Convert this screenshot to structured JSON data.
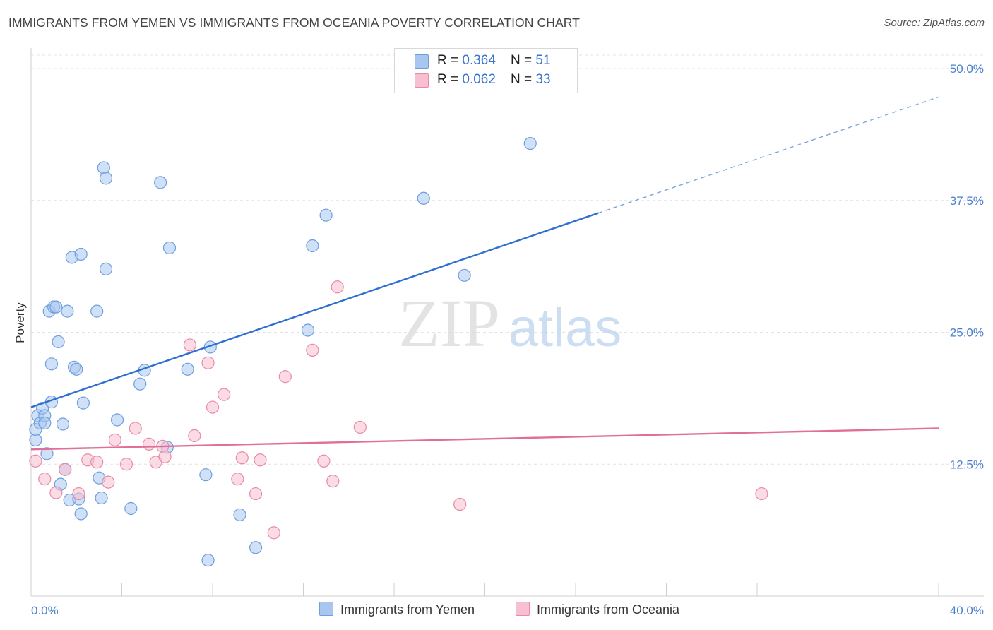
{
  "header": {
    "title": "IMMIGRANTS FROM YEMEN VS IMMIGRANTS FROM OCEANIA POVERTY CORRELATION CHART",
    "source": "Source: ZipAtlas.com"
  },
  "watermark": {
    "zip": "ZIP",
    "atlas": "atlas"
  },
  "legend": {
    "rows": [
      {
        "r_label": "R = ",
        "r_value": "0.364",
        "n_label": "N = ",
        "n_value": "51",
        "color": "#a9c7ee",
        "border": "#6d9fe0"
      },
      {
        "r_label": "R = ",
        "r_value": "0.062",
        "n_label": "N = ",
        "n_value": "33",
        "color": "#f7bfd0",
        "border": "#e98aa8"
      }
    ]
  },
  "chart_data": {
    "type": "scatter",
    "ylabel": "Poverty",
    "xlim": [
      0,
      40
    ],
    "ylim": [
      0,
      50
    ],
    "x_tick_labels": [
      "0.0%",
      "40.0%"
    ],
    "y_ticks": [
      12.5,
      25.0,
      37.5,
      50.0
    ],
    "y_tick_labels": [
      "12.5%",
      "25.0%",
      "37.5%",
      "50.0%"
    ],
    "grid": true,
    "series": [
      {
        "name": "Immigrants from Yemen",
        "color": "#a9c7ee",
        "stroke": "#6d9fe0",
        "trend": {
          "x0": 0,
          "y0": 17.9,
          "x1": 25,
          "y1": 36.3,
          "x2": 40,
          "y2": 47.3,
          "color": "#2f6fcf"
        },
        "points": [
          [
            0.2,
            14.8
          ],
          [
            0.2,
            15.8
          ],
          [
            0.3,
            17.1
          ],
          [
            0.4,
            16.4
          ],
          [
            0.5,
            17.8
          ],
          [
            0.6,
            17.1
          ],
          [
            0.6,
            16.4
          ],
          [
            0.7,
            13.5
          ],
          [
            0.8,
            27.0
          ],
          [
            0.9,
            18.4
          ],
          [
            0.9,
            22.0
          ],
          [
            1.0,
            27.4
          ],
          [
            1.1,
            27.4
          ],
          [
            1.2,
            24.1
          ],
          [
            1.3,
            10.6
          ],
          [
            1.4,
            16.3
          ],
          [
            1.5,
            12.0
          ],
          [
            1.6,
            27.0
          ],
          [
            1.7,
            9.1
          ],
          [
            1.8,
            32.1
          ],
          [
            1.9,
            21.7
          ],
          [
            2.0,
            21.5
          ],
          [
            2.1,
            9.2
          ],
          [
            2.2,
            7.8
          ],
          [
            2.2,
            32.4
          ],
          [
            2.3,
            18.3
          ],
          [
            2.9,
            27.0
          ],
          [
            3.0,
            11.2
          ],
          [
            3.1,
            9.3
          ],
          [
            3.2,
            40.6
          ],
          [
            3.3,
            39.6
          ],
          [
            3.3,
            31.0
          ],
          [
            3.8,
            16.7
          ],
          [
            4.4,
            8.3
          ],
          [
            4.8,
            20.1
          ],
          [
            5.0,
            21.4
          ],
          [
            5.7,
            39.2
          ],
          [
            6.0,
            14.1
          ],
          [
            6.1,
            33.0
          ],
          [
            6.9,
            21.5
          ],
          [
            7.7,
            11.5
          ],
          [
            7.8,
            3.4
          ],
          [
            7.9,
            23.6
          ],
          [
            9.2,
            7.7
          ],
          [
            9.9,
            4.6
          ],
          [
            12.2,
            25.2
          ],
          [
            12.4,
            33.2
          ],
          [
            13.0,
            36.1
          ],
          [
            17.3,
            37.7
          ],
          [
            19.1,
            30.4
          ],
          [
            22.0,
            42.9
          ]
        ]
      },
      {
        "name": "Immigrants from Oceania",
        "color": "#f7bfd0",
        "stroke": "#e98aa8",
        "trend": {
          "x0": 0,
          "y0": 13.9,
          "x1": 40,
          "y1": 15.9,
          "color": "#e0709a"
        },
        "points": [
          [
            0.2,
            12.8
          ],
          [
            0.6,
            11.1
          ],
          [
            1.1,
            9.8
          ],
          [
            1.5,
            12.0
          ],
          [
            2.1,
            9.7
          ],
          [
            2.5,
            12.9
          ],
          [
            2.9,
            12.7
          ],
          [
            3.4,
            10.8
          ],
          [
            3.7,
            14.8
          ],
          [
            4.2,
            12.5
          ],
          [
            4.6,
            15.9
          ],
          [
            5.2,
            14.4
          ],
          [
            5.5,
            12.7
          ],
          [
            5.8,
            14.2
          ],
          [
            5.9,
            13.2
          ],
          [
            7.0,
            23.8
          ],
          [
            7.2,
            15.2
          ],
          [
            7.8,
            22.1
          ],
          [
            8.0,
            17.9
          ],
          [
            8.5,
            19.1
          ],
          [
            9.1,
            11.1
          ],
          [
            9.3,
            13.1
          ],
          [
            9.9,
            9.7
          ],
          [
            10.1,
            12.9
          ],
          [
            10.7,
            6.0
          ],
          [
            11.2,
            20.8
          ],
          [
            12.4,
            23.3
          ],
          [
            12.9,
            12.8
          ],
          [
            13.3,
            10.9
          ],
          [
            13.5,
            29.3
          ],
          [
            14.5,
            16.0
          ],
          [
            18.9,
            8.7
          ],
          [
            32.2,
            9.7
          ]
        ]
      }
    ]
  }
}
